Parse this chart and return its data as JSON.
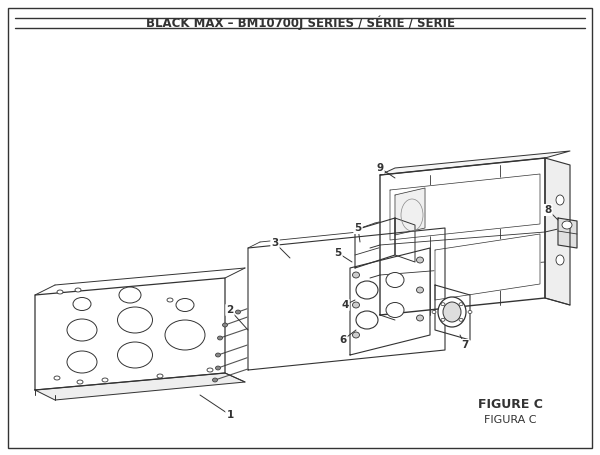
{
  "title": "BLACK MAX – BM10700J SERIES / SÉRIE / SERIE",
  "title_fontsize": 8.5,
  "title_fontweight": "bold",
  "bg_color": "#ffffff",
  "border_color": "#333333",
  "line_color": "#333333",
  "figure_label": "FIGURE C",
  "figura_label": "FIGURA C",
  "label_fontsize": 8,
  "figure_label_fontsize": 9
}
